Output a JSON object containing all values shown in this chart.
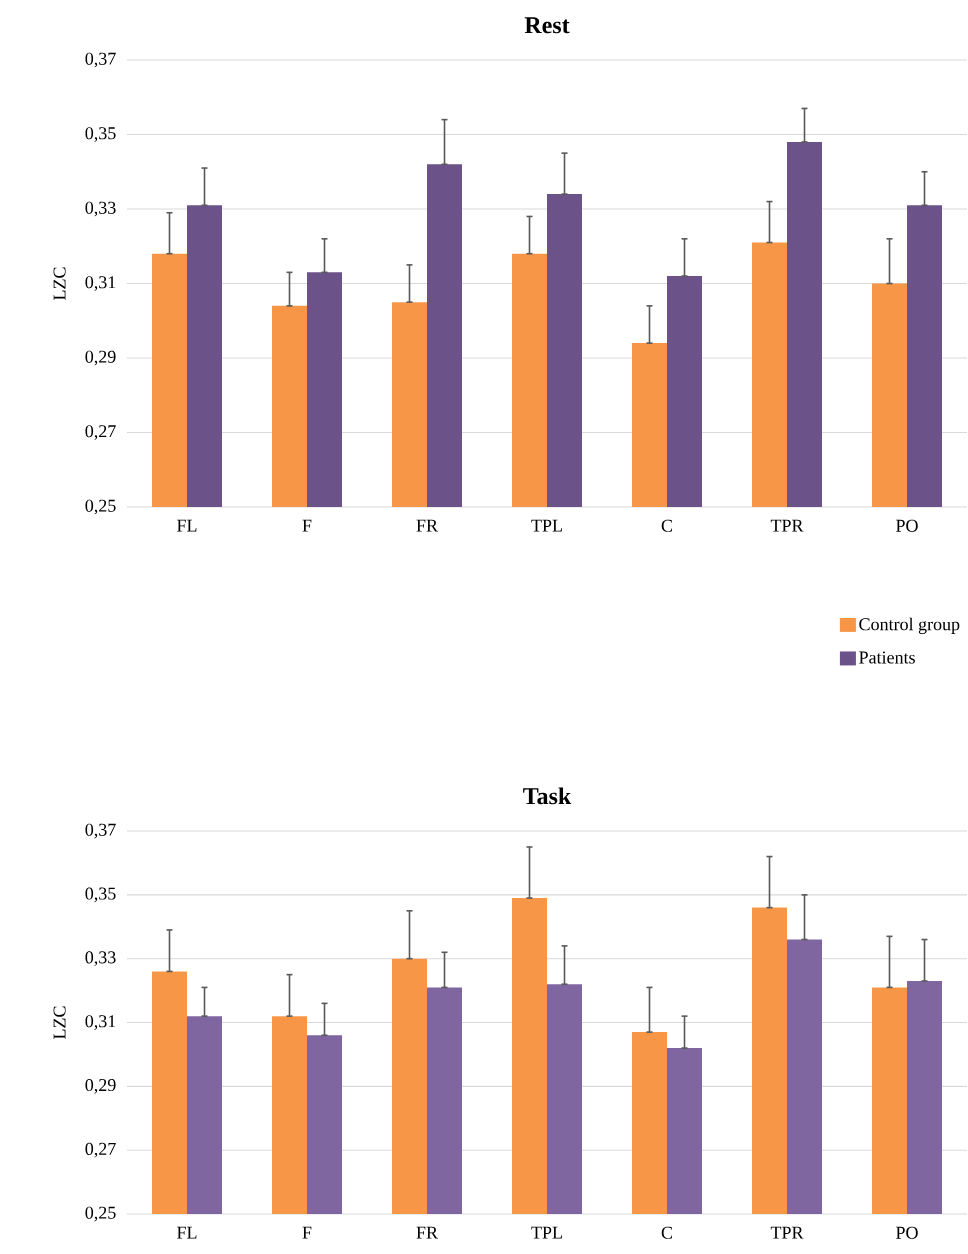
{
  "chart_data": [
    {
      "type": "bar",
      "title": "Rest",
      "ylabel": "LZC",
      "categories": [
        "FL",
        "F",
        "FR",
        "TPL",
        "C",
        "TPR",
        "PO"
      ],
      "series": [
        {
          "name": "Control group",
          "color": "#f79646",
          "values": [
            0.318,
            0.304,
            0.305,
            0.318,
            0.294,
            0.321,
            0.31
          ],
          "errors": [
            [
              0.318,
              0.329
            ],
            [
              0.304,
              0.313
            ],
            [
              0.305,
              0.315
            ],
            [
              0.318,
              0.328
            ],
            [
              0.294,
              0.304
            ],
            [
              0.321,
              0.332
            ],
            [
              0.31,
              0.322
            ]
          ]
        },
        {
          "name": "Patients",
          "color": "#6b5289",
          "values": [
            0.331,
            0.313,
            0.342,
            0.334,
            0.312,
            0.348,
            0.331
          ],
          "errors": [
            [
              0.331,
              0.341
            ],
            [
              0.313,
              0.322
            ],
            [
              0.342,
              0.354
            ],
            [
              0.334,
              0.345
            ],
            [
              0.312,
              0.322
            ],
            [
              0.348,
              0.357
            ],
            [
              0.331,
              0.34
            ]
          ]
        }
      ],
      "ylim": [
        0.25,
        0.37
      ],
      "yticks": [
        {
          "value": 0.25,
          "label": "0,25"
        },
        {
          "value": 0.27,
          "label": "0,27"
        },
        {
          "value": 0.29,
          "label": "0,29"
        },
        {
          "value": 0.31,
          "label": "0,31"
        },
        {
          "value": 0.33,
          "label": "0,33"
        },
        {
          "value": 0.35,
          "label": "0,35"
        },
        {
          "value": 0.37,
          "label": "0,37"
        }
      ],
      "grid": "y",
      "legend": "bottom right"
    },
    {
      "type": "bar",
      "title": "Task",
      "ylabel": "LZC",
      "categories": [
        "FL",
        "F",
        "FR",
        "TPL",
        "C",
        "TPR",
        "PO"
      ],
      "series": [
        {
          "color": "#f79646",
          "values": [
            0.326,
            0.312,
            0.33,
            0.349,
            0.307,
            0.346,
            0.321
          ],
          "errors": [
            [
              0.326,
              0.339
            ],
            [
              0.312,
              0.325
            ],
            [
              0.33,
              0.345
            ],
            [
              0.349,
              0.365
            ],
            [
              0.307,
              0.321
            ],
            [
              0.346,
              0.362
            ],
            [
              0.321,
              0.337
            ]
          ]
        },
        {
          "color": "#8066a0",
          "values": [
            0.312,
            0.306,
            0.321,
            0.322,
            0.302,
            0.336,
            0.323
          ],
          "errors": [
            [
              0.312,
              0.321
            ],
            [
              0.306,
              0.316
            ],
            [
              0.321,
              0.332
            ],
            [
              0.322,
              0.334
            ],
            [
              0.302,
              0.312
            ],
            [
              0.336,
              0.35
            ],
            [
              0.323,
              0.336
            ]
          ]
        }
      ],
      "ylim": [
        0.25,
        0.37
      ],
      "yticks": [
        {
          "value": 0.25,
          "label": "0,25"
        },
        {
          "value": 0.27,
          "label": "0,27"
        },
        {
          "value": 0.29,
          "label": "0,29"
        },
        {
          "value": 0.31,
          "label": "0,31"
        },
        {
          "value": 0.33,
          "label": "0,33"
        },
        {
          "value": 0.35,
          "label": "0,35"
        },
        {
          "value": 0.37,
          "label": "0,37"
        }
      ],
      "grid": "y"
    }
  ]
}
